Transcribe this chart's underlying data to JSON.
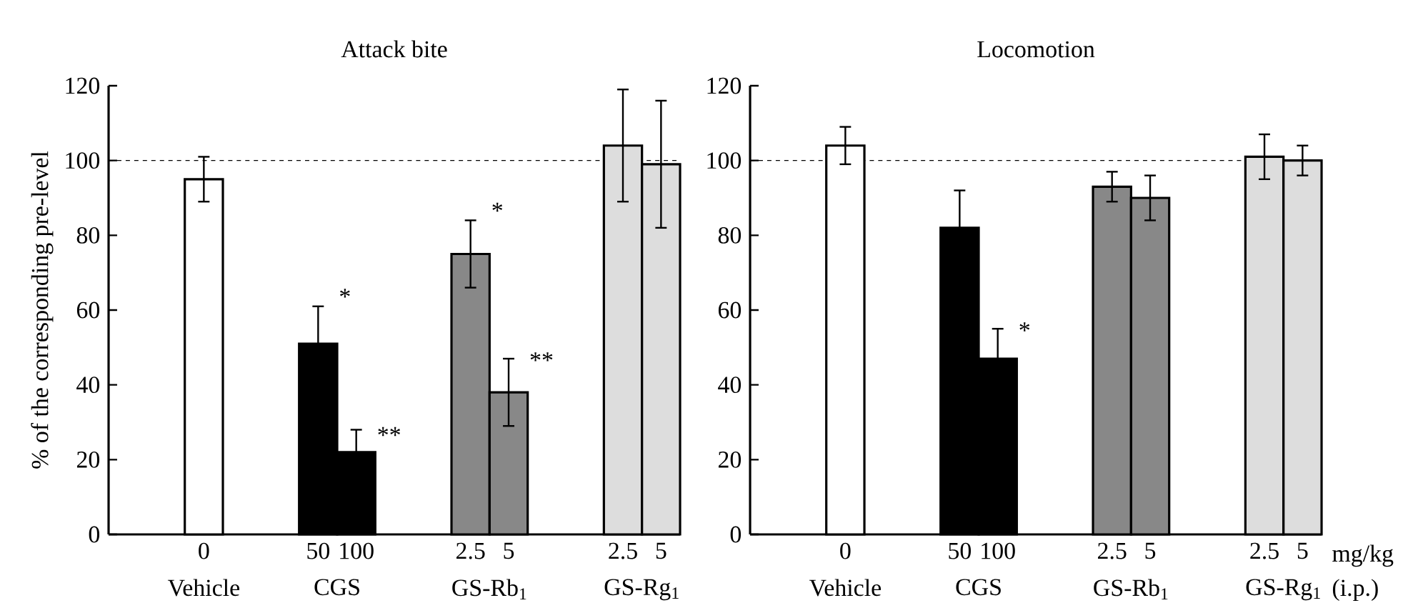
{
  "chart_data": [
    {
      "type": "bar",
      "title": "Attack bite",
      "ylabel": "% of the corresponding pre-level",
      "categories": [
        "0",
        "50",
        "100",
        "2.5",
        "5",
        "2.5",
        "5"
      ],
      "series": [
        {
          "name": "Vehicle",
          "color": "#ffffff",
          "values": [
            95,
            null,
            null,
            null,
            null,
            null,
            null
          ],
          "errors": [
            6,
            null,
            null,
            null,
            null,
            null,
            null
          ]
        },
        {
          "name": "CGS",
          "color": "#000000",
          "values": [
            null,
            51,
            22,
            null,
            null,
            null,
            null
          ],
          "errors": [
            null,
            10,
            6,
            null,
            null,
            null,
            null
          ]
        },
        {
          "name": "GS-Rb$_{1}$",
          "color": "#888888",
          "values": [
            null,
            null,
            null,
            75,
            38,
            null,
            null
          ],
          "errors": [
            null,
            null,
            null,
            9,
            9,
            null,
            null
          ]
        },
        {
          "name": "GS-Rg$_{1}$",
          "color": "#dddddd",
          "values": [
            null,
            null,
            null,
            null,
            null,
            104,
            99
          ],
          "errors": [
            null,
            null,
            null,
            null,
            null,
            15,
            17
          ]
        }
      ],
      "ylim": [
        0,
        120
      ],
      "yticks": [
        0,
        20,
        40,
        60,
        80,
        100,
        120
      ],
      "ref_lines": [
        {
          "axis": "y",
          "value": 100,
          "line_style": "dashed"
        }
      ],
      "annotations": [
        {
          "text": "*",
          "x": "50",
          "y": 61
        },
        {
          "text": "**",
          "x": "100",
          "y": 24
        },
        {
          "text": "*",
          "x": "2.5",
          "y": 84
        },
        {
          "text": "**",
          "x": "5",
          "y": 44
        }
      ]
    },
    {
      "type": "bar",
      "title": "Locomotion",
      "categories": [
        "0",
        "50",
        "100",
        "2.5",
        "5",
        "2.5",
        "5"
      ],
      "series": [
        {
          "name": "Vehicle",
          "color": "#ffffff",
          "values": [
            104,
            null,
            null,
            null,
            null,
            null,
            null
          ],
          "errors": [
            5,
            null,
            null,
            null,
            null,
            null,
            null
          ]
        },
        {
          "name": "CGS",
          "color": "#000000",
          "values": [
            null,
            82,
            47,
            null,
            null,
            null,
            null
          ],
          "errors": [
            null,
            10,
            8,
            null,
            null,
            null,
            null
          ]
        },
        {
          "name": "GS-Rb$_{1}$",
          "color": "#888888",
          "values": [
            null,
            null,
            null,
            93,
            90,
            null,
            null
          ],
          "errors": [
            null,
            null,
            null,
            4,
            6,
            null,
            null
          ]
        },
        {
          "name": "GS-Rg$_{1}$",
          "color": "#dddddd",
          "values": [
            null,
            null,
            null,
            null,
            null,
            101,
            100
          ],
          "errors": [
            null,
            null,
            null,
            null,
            null,
            6,
            4
          ]
        }
      ],
      "ylim": [
        0,
        120
      ],
      "yticks": [
        0,
        20,
        40,
        60,
        80,
        100,
        120
      ],
      "ref_lines": [
        {
          "axis": "y",
          "value": 100,
          "line_style": "dashed"
        }
      ],
      "annotations": [
        {
          "text": "*",
          "x": "100",
          "y": 52
        },
        "mg/kg",
        "(i.p.)"
      ]
    }
  ]
}
